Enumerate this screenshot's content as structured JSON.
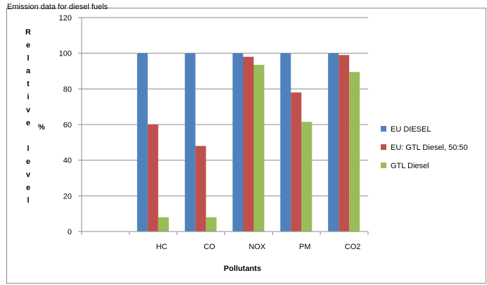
{
  "chart_data": {
    "type": "bar",
    "title": "",
    "cut_off_header": "Emission data for diesel fuels",
    "xlabel": "Pollutants",
    "ylabel_letters": [
      "R",
      "e",
      "l",
      "a",
      "t",
      "i",
      "v",
      "e",
      "",
      "l",
      "e",
      "v",
      "e",
      "l"
    ],
    "ylabel_unit": "%",
    "categories": [
      "",
      "HC",
      "CO",
      "NOX",
      "PM",
      "CO2"
    ],
    "ylim": [
      0,
      120
    ],
    "yticks": [
      "0",
      "20",
      "40",
      "60",
      "80",
      "100",
      "120"
    ],
    "grid": true,
    "legend_position": "right",
    "series": [
      {
        "name": "EU DIESEL",
        "color": "#4f81bd",
        "values": [
          null,
          100,
          100,
          100,
          100,
          100
        ]
      },
      {
        "name": "EU: GTL Diesel, 50:50",
        "color": "#c0504d",
        "values": [
          null,
          60,
          48,
          98,
          78,
          99
        ]
      },
      {
        "name": "GTL Diesel",
        "color": "#9bbb59",
        "values": [
          null,
          8,
          8,
          93.5,
          61.5,
          89.5
        ]
      }
    ]
  }
}
